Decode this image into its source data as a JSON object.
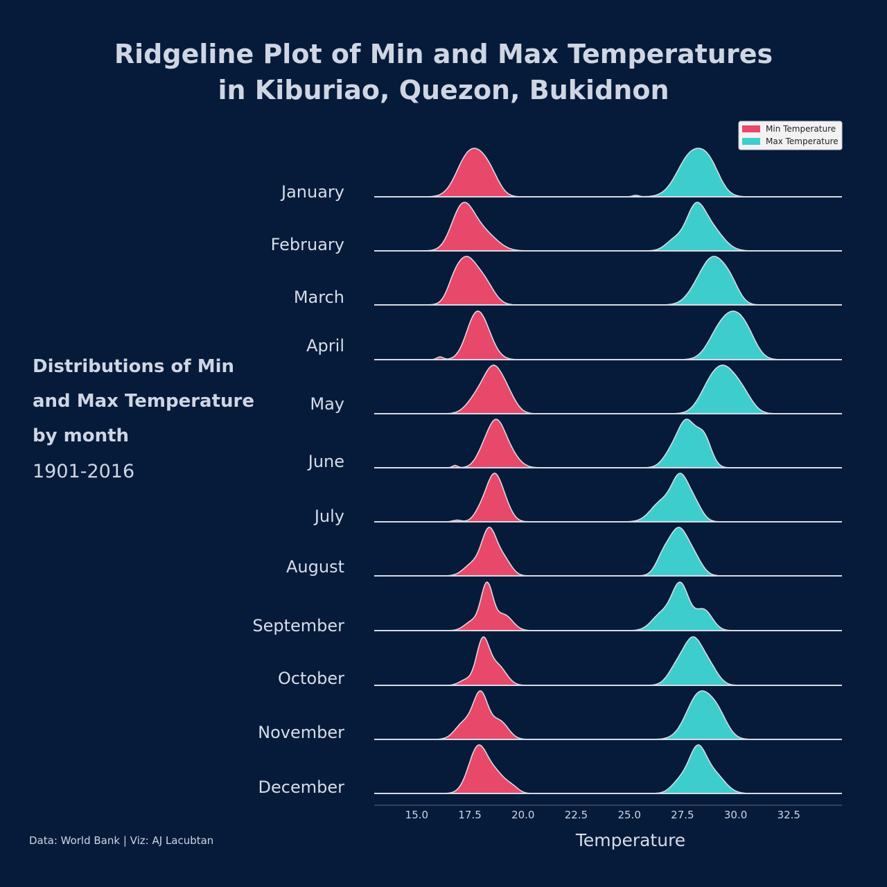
{
  "title_lines": [
    "Ridgeline Plot of Min and Max Temperatures",
    "in Kiburiao, Quezon, Bukidnon"
  ],
  "side": {
    "subtitle_lines": [
      "Distributions of Min",
      "and Max Temperature",
      "by month"
    ],
    "years": "1901-2016"
  },
  "footer": "Data: World Bank | Viz: AJ Lacubtan",
  "chart_data": {
    "type": "ridgeline",
    "xlabel": "Temperature",
    "xlim": [
      13.0,
      35.0
    ],
    "xticks": [
      15.0,
      17.5,
      20.0,
      22.5,
      25.0,
      27.5,
      30.0,
      32.5
    ],
    "tick_labels": [
      "15.0",
      "17.5",
      "20.0",
      "22.5",
      "25.0",
      "27.5",
      "30.0",
      "32.5"
    ],
    "legend": {
      "placement": "top-right",
      "entries": [
        "Min Temperature",
        "Max Temperature"
      ]
    },
    "colors": {
      "min": "#e8486a",
      "max": "#3ecdcd",
      "outline": "#d8dbe3",
      "background": "#061b3a"
    },
    "series": [
      {
        "name": "Min Temperature",
        "color": "#e8486a"
      },
      {
        "name": "Max Temperature",
        "color": "#3ecdcd"
      }
    ],
    "months": [
      {
        "label": "January",
        "min": [
          [
            17.4,
            0.55,
            1.0
          ],
          [
            18.1,
            0.45,
            0.55
          ],
          [
            18.6,
            0.4,
            0.3
          ]
        ],
        "max": [
          [
            27.9,
            0.65,
            0.85
          ],
          [
            28.8,
            0.5,
            0.5
          ],
          [
            25.3,
            0.15,
            0.03
          ]
        ]
      },
      {
        "label": "February",
        "min": [
          [
            17.3,
            0.5,
            1.0
          ],
          [
            16.9,
            0.45,
            0.45
          ],
          [
            18.2,
            0.6,
            0.5
          ]
        ],
        "max": [
          [
            28.1,
            0.45,
            1.0
          ],
          [
            27.1,
            0.4,
            0.25
          ],
          [
            28.9,
            0.55,
            0.5
          ]
        ]
      },
      {
        "label": "March",
        "min": [
          [
            17.3,
            0.5,
            1.0
          ],
          [
            18.2,
            0.45,
            0.45
          ],
          [
            16.7,
            0.3,
            0.2
          ]
        ],
        "max": [
          [
            29.0,
            0.55,
            1.0
          ],
          [
            28.2,
            0.5,
            0.3
          ],
          [
            29.8,
            0.4,
            0.35
          ]
        ]
      },
      {
        "label": "April",
        "min": [
          [
            18.0,
            0.5,
            1.0
          ],
          [
            17.6,
            0.4,
            0.35
          ],
          [
            16.1,
            0.15,
            0.07
          ]
        ],
        "max": [
          [
            29.9,
            0.55,
            1.0
          ],
          [
            29.1,
            0.5,
            0.5
          ],
          [
            30.6,
            0.45,
            0.4
          ]
        ]
      },
      {
        "label": "May",
        "min": [
          [
            18.6,
            0.45,
            1.0
          ],
          [
            17.8,
            0.45,
            0.35
          ],
          [
            19.3,
            0.4,
            0.35
          ]
        ],
        "max": [
          [
            29.5,
            0.6,
            1.0
          ],
          [
            28.7,
            0.5,
            0.4
          ],
          [
            30.4,
            0.45,
            0.3
          ]
        ]
      },
      {
        "label": "June",
        "min": [
          [
            18.7,
            0.4,
            1.0
          ],
          [
            19.3,
            0.45,
            0.4
          ],
          [
            18.1,
            0.35,
            0.3
          ],
          [
            16.8,
            0.12,
            0.06
          ]
        ],
        "max": [
          [
            27.7,
            0.4,
            1.0
          ],
          [
            28.5,
            0.35,
            0.7
          ],
          [
            27.0,
            0.4,
            0.35
          ]
        ]
      },
      {
        "label": "July",
        "min": [
          [
            18.6,
            0.35,
            1.0
          ],
          [
            19.1,
            0.35,
            0.4
          ],
          [
            18.0,
            0.3,
            0.25
          ],
          [
            16.9,
            0.2,
            0.04
          ]
        ],
        "max": [
          [
            27.4,
            0.4,
            1.0
          ],
          [
            26.5,
            0.5,
            0.45
          ],
          [
            28.1,
            0.35,
            0.35
          ]
        ]
      },
      {
        "label": "August",
        "min": [
          [
            18.4,
            0.35,
            1.0
          ],
          [
            17.6,
            0.4,
            0.25
          ],
          [
            19.1,
            0.35,
            0.35
          ]
        ],
        "max": [
          [
            27.3,
            0.4,
            1.0
          ],
          [
            26.6,
            0.35,
            0.45
          ],
          [
            28.0,
            0.4,
            0.45
          ]
        ]
      },
      {
        "label": "September",
        "min": [
          [
            18.3,
            0.28,
            1.0
          ],
          [
            19.1,
            0.4,
            0.35
          ],
          [
            17.6,
            0.35,
            0.2
          ]
        ],
        "max": [
          [
            27.4,
            0.4,
            1.0
          ],
          [
            26.5,
            0.45,
            0.35
          ],
          [
            28.5,
            0.4,
            0.45
          ]
        ]
      },
      {
        "label": "October",
        "min": [
          [
            18.1,
            0.3,
            1.0
          ],
          [
            18.8,
            0.4,
            0.45
          ],
          [
            17.3,
            0.3,
            0.12
          ]
        ],
        "max": [
          [
            28.0,
            0.45,
            1.0
          ],
          [
            27.2,
            0.4,
            0.35
          ],
          [
            28.8,
            0.4,
            0.35
          ]
        ]
      },
      {
        "label": "November",
        "min": [
          [
            18.0,
            0.35,
            1.0
          ],
          [
            17.2,
            0.4,
            0.35
          ],
          [
            18.9,
            0.4,
            0.4
          ]
        ],
        "max": [
          [
            28.3,
            0.6,
            1.0
          ],
          [
            29.2,
            0.45,
            0.4
          ]
        ]
      },
      {
        "label": "December",
        "min": [
          [
            17.9,
            0.45,
            1.0
          ],
          [
            18.8,
            0.4,
            0.35
          ],
          [
            19.5,
            0.3,
            0.12
          ]
        ],
        "max": [
          [
            28.2,
            0.4,
            1.0
          ],
          [
            27.4,
            0.4,
            0.3
          ],
          [
            29.0,
            0.5,
            0.45
          ]
        ]
      }
    ]
  }
}
